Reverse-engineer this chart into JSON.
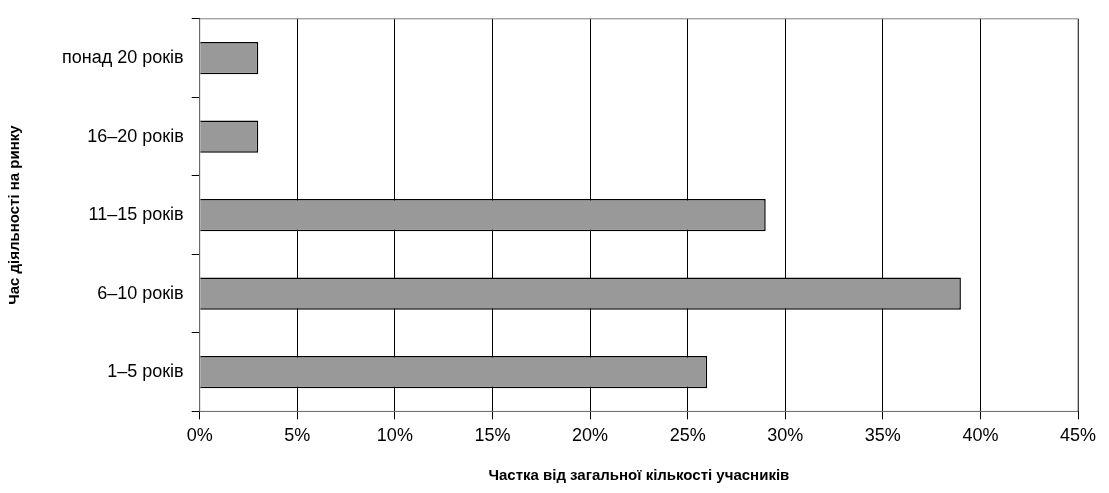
{
  "chart_data": {
    "type": "bar",
    "orientation": "horizontal",
    "xlabel": "Частка від загальної кількості учасників",
    "ylabel": "Час діяльності на ринку",
    "categories": [
      "понад 20 років",
      "16–20 років",
      "11–15 років",
      "6–10 років",
      "1–5 років"
    ],
    "values": [
      3,
      3,
      29,
      39,
      26
    ],
    "color": "#999999",
    "xlim": [
      0,
      45
    ],
    "xticks": [
      {
        "value": 0,
        "label": "0%"
      },
      {
        "value": 5,
        "label": "5%"
      },
      {
        "value": 10,
        "label": "10%"
      },
      {
        "value": 15,
        "label": "15%"
      },
      {
        "value": 20,
        "label": "20%"
      },
      {
        "value": 25,
        "label": "25%"
      },
      {
        "value": 30,
        "label": "30%"
      },
      {
        "value": 35,
        "label": "35%"
      },
      {
        "value": 40,
        "label": "40%"
      },
      {
        "value": 45,
        "label": "45%"
      }
    ],
    "grid": "x",
    "legend": false
  }
}
